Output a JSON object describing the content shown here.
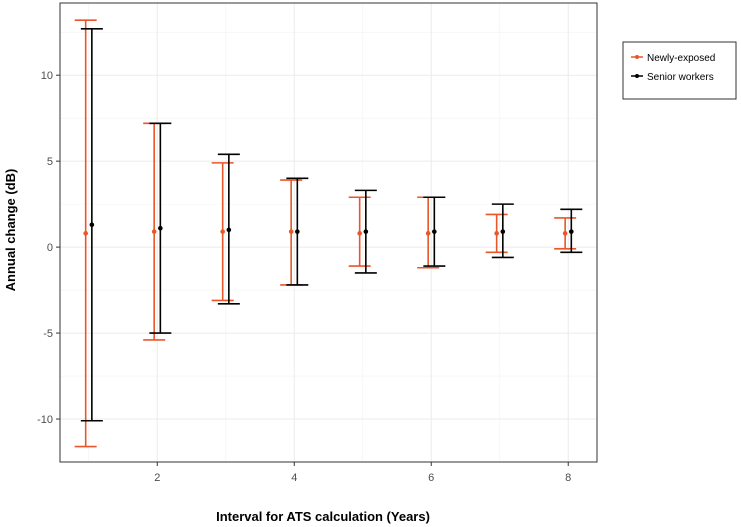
{
  "chart_data": {
    "type": "errorbar",
    "title": "",
    "xlabel": "Interval for ATS calculation (Years)",
    "ylabel": "Annual change (dB)",
    "xlim": [
      0.58,
      8.42
    ],
    "ylim": [
      -12.5,
      14.2
    ],
    "x_ticks": [
      "2",
      "4",
      "6",
      "8"
    ],
    "y_ticks": [
      "-10",
      "-5",
      "0",
      "5",
      "10"
    ],
    "grid": true,
    "legend_position": "top-right",
    "series": [
      {
        "name": "Newly-exposed",
        "color": "#E8562A",
        "points": [
          {
            "x": 1,
            "mean": 0.8,
            "lower": -11.6,
            "upper": 13.2
          },
          {
            "x": 2,
            "mean": 0.9,
            "lower": -5.4,
            "upper": 7.2
          },
          {
            "x": 3,
            "mean": 0.9,
            "lower": -3.1,
            "upper": 4.9
          },
          {
            "x": 4,
            "mean": 0.9,
            "lower": -2.2,
            "upper": 3.9
          },
          {
            "x": 5,
            "mean": 0.8,
            "lower": -1.1,
            "upper": 2.9
          },
          {
            "x": 6,
            "mean": 0.8,
            "lower": -1.2,
            "upper": 2.9
          },
          {
            "x": 7,
            "mean": 0.8,
            "lower": -0.3,
            "upper": 1.9
          },
          {
            "x": 8,
            "mean": 0.8,
            "lower": -0.1,
            "upper": 1.7
          }
        ]
      },
      {
        "name": "Senior workers",
        "color": "#000000",
        "points": [
          {
            "x": 1,
            "mean": 1.3,
            "lower": -10.1,
            "upper": 12.7
          },
          {
            "x": 2,
            "mean": 1.1,
            "lower": -5.0,
            "upper": 7.2
          },
          {
            "x": 3,
            "mean": 1.0,
            "lower": -3.3,
            "upper": 5.4
          },
          {
            "x": 4,
            "mean": 0.9,
            "lower": -2.2,
            "upper": 4.0
          },
          {
            "x": 5,
            "mean": 0.9,
            "lower": -1.5,
            "upper": 3.3
          },
          {
            "x": 6,
            "mean": 0.9,
            "lower": -1.1,
            "upper": 2.9
          },
          {
            "x": 7,
            "mean": 0.9,
            "lower": -0.6,
            "upper": 2.5
          },
          {
            "x": 8,
            "mean": 0.9,
            "lower": -0.3,
            "upper": 2.2
          }
        ]
      }
    ]
  }
}
